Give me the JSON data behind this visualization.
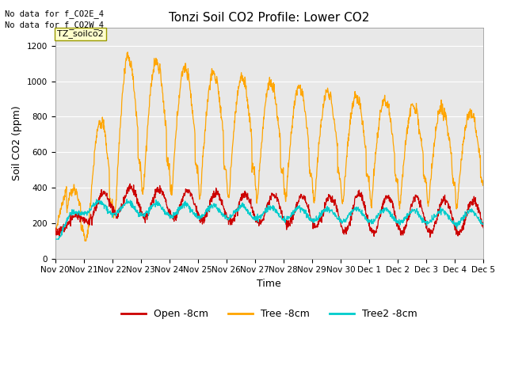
{
  "title": "Tonzi Soil CO2 Profile: Lower CO2",
  "xlabel": "Time",
  "ylabel": "Soil CO2 (ppm)",
  "ylim": [
    0,
    1300
  ],
  "yticks": [
    0,
    200,
    400,
    600,
    800,
    1000,
    1200
  ],
  "bg_color": "#e8e8e8",
  "fig_color": "#ffffff",
  "no_data_text": [
    "No data for f_CO2E_4",
    "No data for f_CO2W_4"
  ],
  "label_box_text": "TZ_soilco2",
  "legend_labels": [
    "Open -8cm",
    "Tree -8cm",
    "Tree2 -8cm"
  ],
  "legend_colors": [
    "#cc0000",
    "#ffa500",
    "#00cccc"
  ],
  "x_tick_labels": [
    "Nov 20",
    "Nov 21",
    "Nov 22",
    "Nov 23",
    "Nov 24",
    "Nov 25",
    "Nov 26",
    "Nov 27",
    "Nov 28",
    "Nov 29",
    "Nov 30",
    "Dec 1",
    "Dec 2",
    "Dec 3",
    "Dec 4",
    "Dec 5"
  ]
}
